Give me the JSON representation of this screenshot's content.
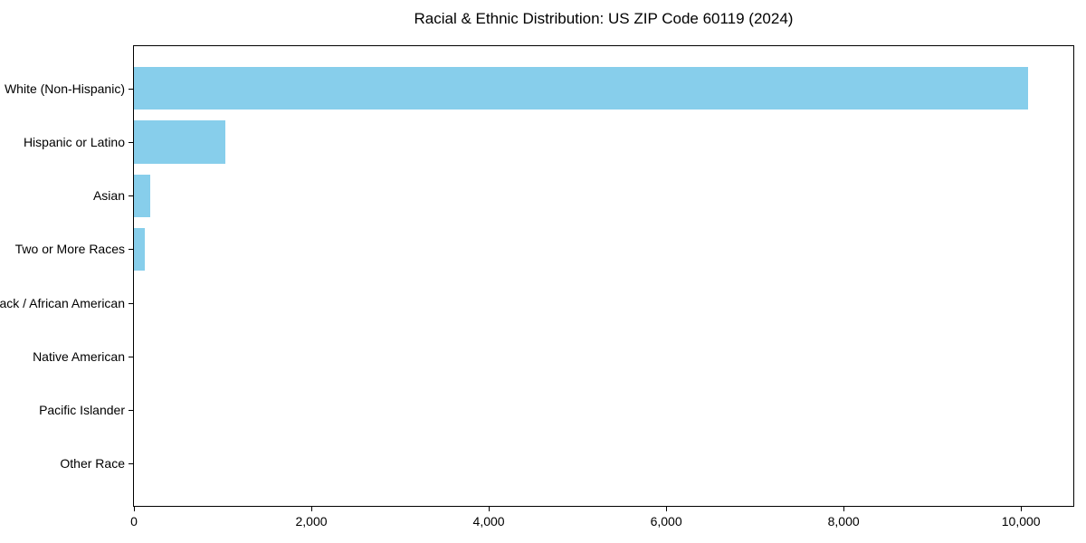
{
  "chart_data": {
    "type": "bar",
    "orientation": "horizontal",
    "title": "Racial & Ethnic Distribution: US ZIP Code 60119 (2024)",
    "categories": [
      "White (Non-Hispanic)",
      "Hispanic or Latino",
      "Asian",
      "Two or More Races",
      "Black / African American",
      "Native American",
      "Pacific Islander",
      "Other Race"
    ],
    "values": [
      10080,
      1030,
      180,
      120,
      0,
      0,
      0,
      0
    ],
    "xlabel": "",
    "ylabel": "",
    "xlim": [
      0,
      10590
    ],
    "x_ticks": [
      0,
      2000,
      4000,
      6000,
      8000,
      10000
    ],
    "x_tick_labels": [
      "0",
      "2,000",
      "4,000",
      "6,000",
      "8,000",
      "10,000"
    ],
    "bar_color": "#87CEEB",
    "text_color": "#000000",
    "grid": false,
    "legend": false
  }
}
